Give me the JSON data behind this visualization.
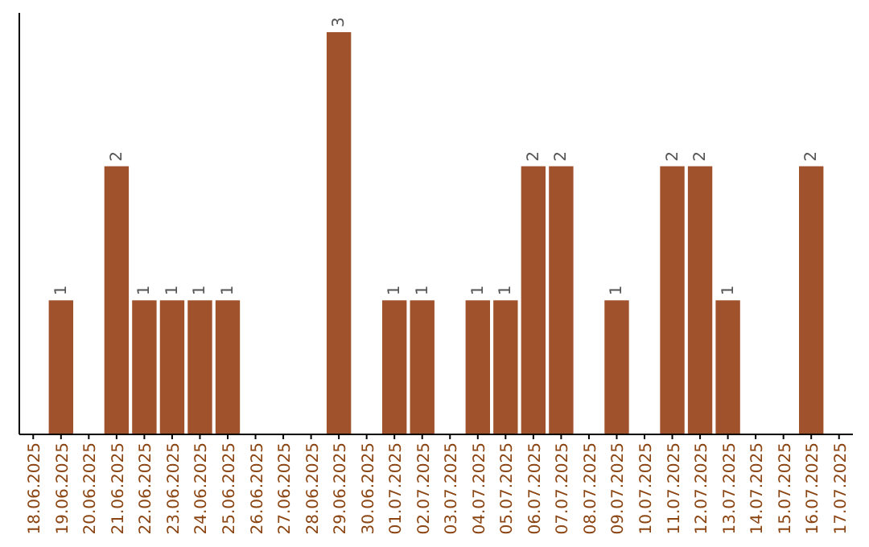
{
  "chart_data": {
    "type": "bar",
    "categories": [
      "18.06.2025",
      "19.06.2025",
      "20.06.2025",
      "21.06.2025",
      "22.06.2025",
      "23.06.2025",
      "24.06.2025",
      "25.06.2025",
      "26.06.2025",
      "27.06.2025",
      "28.06.2025",
      "29.06.2025",
      "30.06.2025",
      "01.07.2025",
      "02.07.2025",
      "03.07.2025",
      "04.07.2025",
      "05.07.2025",
      "06.07.2025",
      "07.07.2025",
      "08.07.2025",
      "09.07.2025",
      "10.07.2025",
      "11.07.2025",
      "12.07.2025",
      "13.07.2025",
      "14.07.2025",
      "15.07.2025",
      "16.07.2025",
      "17.07.2025"
    ],
    "values": [
      0,
      1,
      0,
      2,
      1,
      1,
      1,
      1,
      0,
      0,
      0,
      3,
      0,
      1,
      1,
      0,
      1,
      1,
      2,
      2,
      0,
      1,
      0,
      2,
      2,
      1,
      0,
      0,
      2,
      0
    ],
    "value_labels": [
      null,
      "1",
      null,
      "2",
      "1",
      "1",
      "1",
      "1",
      null,
      null,
      null,
      "3",
      null,
      "1",
      "1",
      null,
      "1",
      "1",
      "2",
      "2",
      null,
      "1",
      null,
      "2",
      "2",
      "1",
      null,
      null,
      "2",
      null
    ],
    "color": "#a0522d",
    "ylim": [
      0,
      3
    ],
    "tick_labels": "x"
  }
}
